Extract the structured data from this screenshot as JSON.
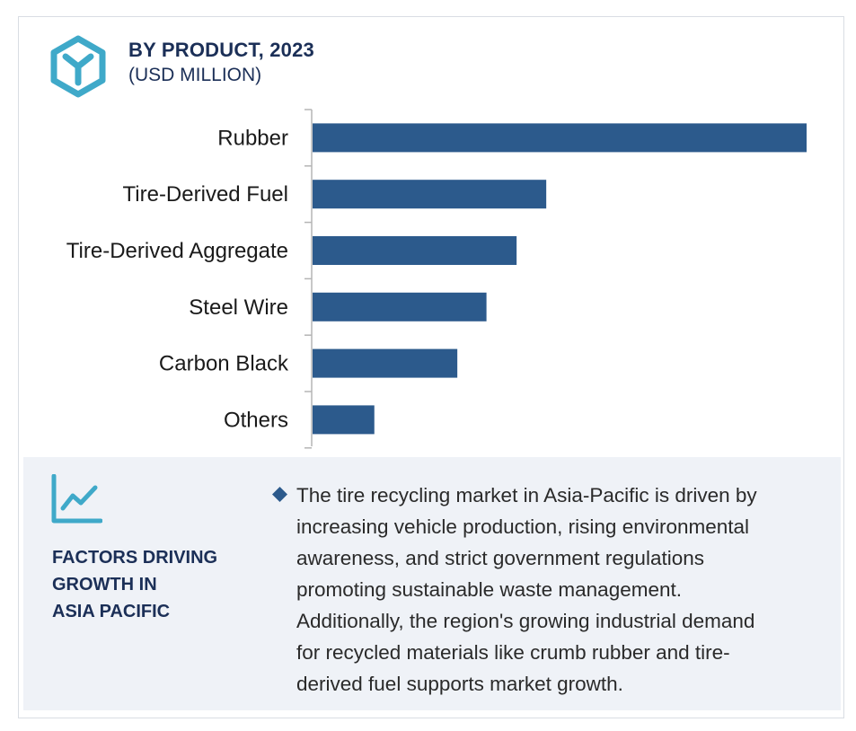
{
  "header": {
    "title": "BY PRODUCT, 2023",
    "subtitle": "(USD MILLION)",
    "logo_icon": "hexagon-y-logo-icon"
  },
  "chart_data": {
    "type": "bar",
    "orientation": "horizontal",
    "title": "BY PRODUCT, 2023",
    "subtitle": "(USD MILLION)",
    "xlabel": "",
    "ylabel": "",
    "categories": [
      "Rubber",
      "Tire-Derived Fuel",
      "Tire-Derived Aggregate",
      "Steel Wire",
      "Carbon Black",
      "Others"
    ],
    "values": [
      100,
      47.3,
      41.3,
      35.2,
      29.3,
      12.5
    ],
    "value_scale_note": "relative bar lengths, no numeric axis shown",
    "xlim": [
      0,
      100
    ],
    "grid": false,
    "legend": "none",
    "bar_color": "#2c5a8c"
  },
  "factors": {
    "icon": "trend-line-chart-icon",
    "heading_lines": [
      "FACTORS DRIVING",
      "GROWTH IN",
      "ASIA PACIFIC"
    ],
    "bullet_icon": "diamond-bullet-icon",
    "text_lines": [
      "The tire recycling market in Asia-Pacific is driven by",
      "increasing vehicle production, rising environmental",
      "awareness, and strict government regulations",
      "promoting sustainable waste management.",
      "Additionally, the region's growing industrial demand",
      "for recycled materials like crumb rubber and tire-",
      "derived fuel supports market growth."
    ]
  },
  "colors": {
    "accent": "#3fa9c9",
    "heading": "#1b2f57",
    "bar": "#2c5a8c",
    "panel": "#eff2f7"
  }
}
